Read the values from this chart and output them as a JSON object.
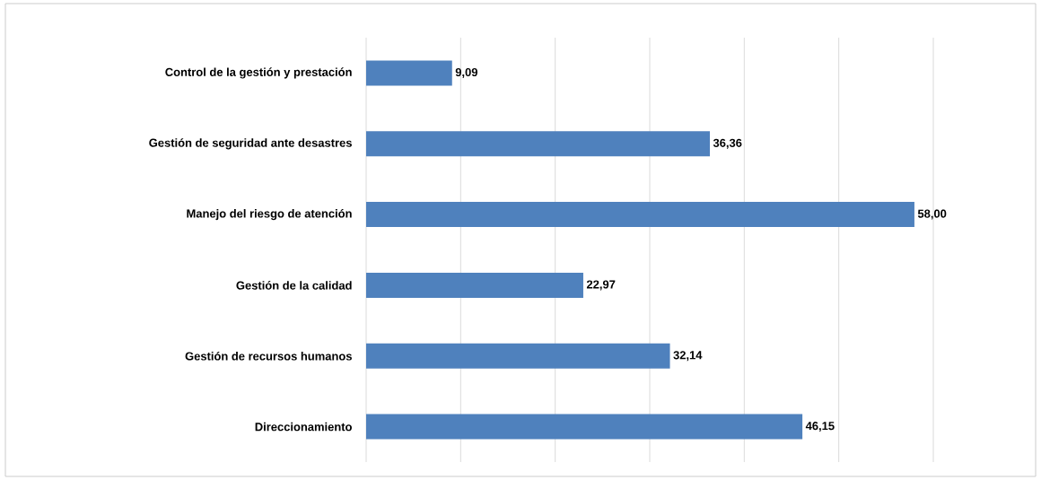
{
  "chart_data": {
    "type": "bar",
    "orientation": "horizontal",
    "categories": [
      "Control de la gestión y prestación",
      "Gestión de seguridad ante desastres",
      "Manejo del riesgo de atención",
      "Gestión de la calidad",
      "Gestión de recursos humanos",
      "Direccionamiento"
    ],
    "values": [
      9.09,
      36.36,
      58.0,
      22.97,
      32.14,
      46.15
    ],
    "value_labels": [
      "9,09",
      "36,36",
      "58,00",
      "22,97",
      "32,14",
      "46,15"
    ],
    "color": "#4f81bd",
    "xlim": [
      0,
      60
    ],
    "xticks": [
      {
        "value": 0,
        "label": null
      },
      {
        "value": 10,
        "label": null
      },
      {
        "value": 20,
        "label": null
      },
      {
        "value": 30,
        "label": null
      },
      {
        "value": 40,
        "label": null
      },
      {
        "value": 50,
        "label": null
      },
      {
        "value": 60,
        "label": null
      }
    ],
    "grid": "x",
    "tick_labels": "y"
  }
}
